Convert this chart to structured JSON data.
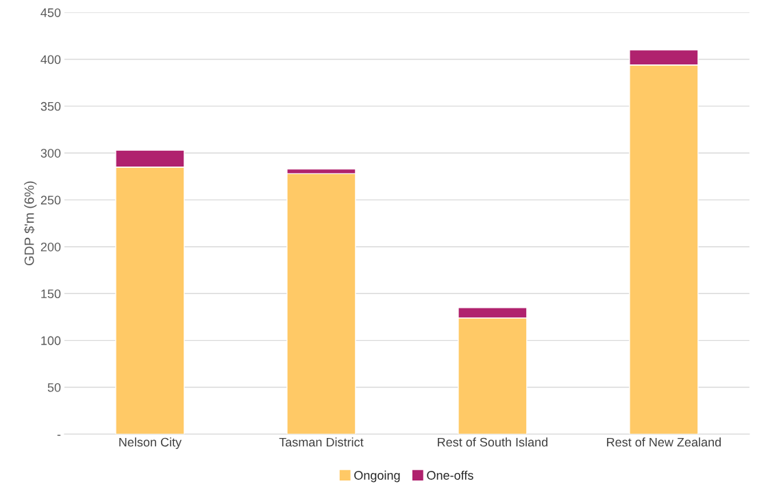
{
  "chart_data": {
    "type": "bar",
    "ylabel": "GDP $'m (6%)",
    "categories": [
      "Nelson City",
      "Tasman District",
      "Rest of South Island",
      "Rest of New Zealand"
    ],
    "stacked": true,
    "series": [
      {
        "name": "Ongoing",
        "color": "#ffc966",
        "values": [
          285,
          278,
          124,
          394
        ]
      },
      {
        "name": "One-offs",
        "color": "#b0226e",
        "values": [
          18,
          5,
          11,
          16
        ]
      }
    ],
    "ylim": [
      0,
      450
    ],
    "yticks": [
      {
        "value": 0,
        "label": "-"
      },
      50,
      100,
      150,
      200,
      250,
      300,
      350,
      400,
      450
    ],
    "grid": "y",
    "legend": "bottom"
  }
}
